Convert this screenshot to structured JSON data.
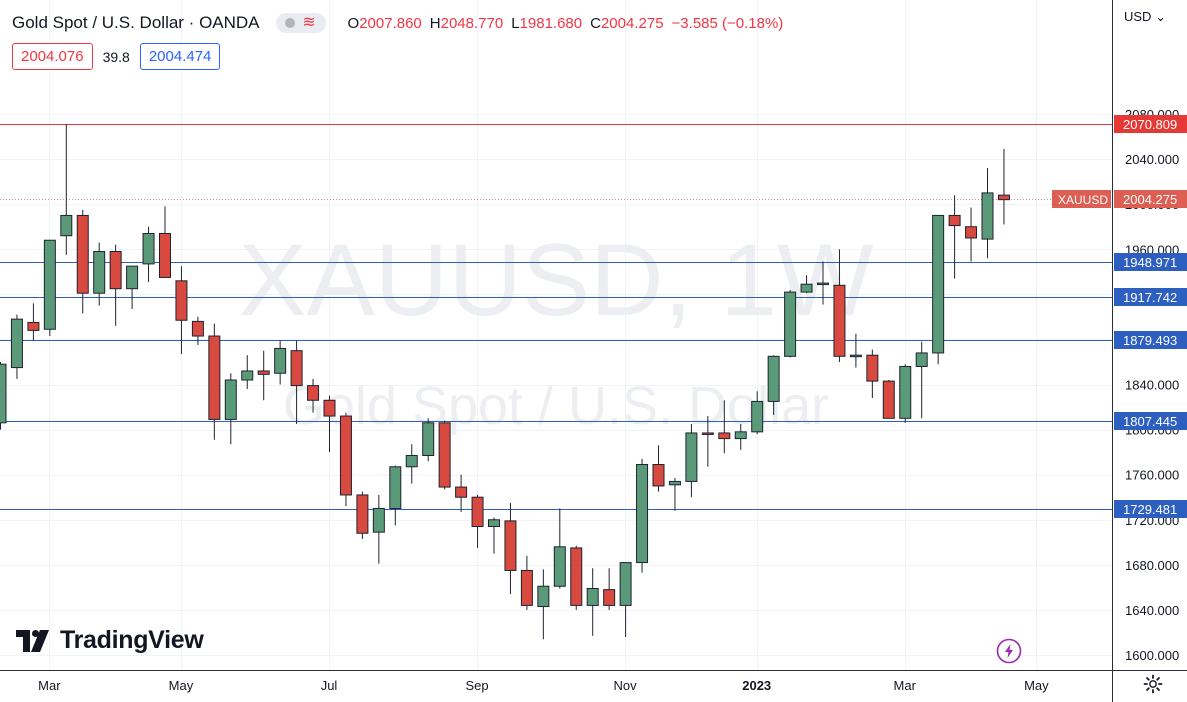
{
  "legend": {
    "title": "Gold Spot / U.S. Dollar · OANDA",
    "open_label": "O",
    "open": "2007.860",
    "high_label": "H",
    "high": "2048.770",
    "low_label": "L",
    "low": "1981.680",
    "close_label": "C",
    "close": "2004.275",
    "change": "−3.585 (−0.18%)",
    "sell_price": "2004.076",
    "spread": "39.8",
    "buy_price": "2004.474"
  },
  "currency_selector": "USD",
  "watermark": {
    "symbol": "XAUUSD, 1W",
    "name": "Gold Spot / U.S. Dollar"
  },
  "branding": {
    "logo_text": "TradingView"
  },
  "colors": {
    "up": "#5b9a79",
    "down": "#d8493f",
    "line": "#2c5fc0",
    "top_line": "#e53935",
    "label_blue": "#2c5fc0",
    "label_red": "#e53935",
    "price_label": "#dd5e52"
  },
  "chart_data": {
    "type": "candlestick",
    "symbol": "XAUUSD",
    "timeframe": "1W",
    "ylim": [
      1590,
      2110
    ],
    "y_ticks": [
      1600,
      1640,
      1680,
      1720,
      1760,
      1800,
      1840,
      1880,
      1920,
      1960,
      2000,
      2040,
      2080
    ],
    "y_tick_labels": [
      "1600.000",
      "1640.000",
      "1680.000",
      "1720.000",
      "1760.000",
      "1800.000",
      "1840.000",
      "1880.000",
      "1920.000",
      "1960.000",
      "2000.000",
      "2040.000",
      "2080.000"
    ],
    "x_labels": [
      {
        "label": "Mar",
        "index": 3
      },
      {
        "label": "May",
        "index": 11
      },
      {
        "label": "Jul",
        "index": 20
      },
      {
        "label": "Sep",
        "index": 29
      },
      {
        "label": "Nov",
        "index": 38
      },
      {
        "label": "2023",
        "index": 46
      },
      {
        "label": "Mar",
        "index": 55
      },
      {
        "label": "May",
        "index": 63
      }
    ],
    "candles": [
      {
        "o": 1806,
        "h": 1860,
        "l": 1800,
        "c": 1858
      },
      {
        "o": 1855,
        "h": 1902,
        "l": 1845,
        "c": 1898
      },
      {
        "o": 1895,
        "h": 1912,
        "l": 1879,
        "c": 1888
      },
      {
        "o": 1889,
        "h": 1967,
        "l": 1883,
        "c": 1968
      },
      {
        "o": 1972,
        "h": 2071,
        "l": 1955,
        "c": 1990
      },
      {
        "o": 1990,
        "h": 1995,
        "l": 1903,
        "c": 1921
      },
      {
        "o": 1921,
        "h": 1966,
        "l": 1910,
        "c": 1958
      },
      {
        "o": 1958,
        "h": 1964,
        "l": 1892,
        "c": 1925
      },
      {
        "o": 1925,
        "h": 1945,
        "l": 1907,
        "c": 1945
      },
      {
        "o": 1947,
        "h": 1980,
        "l": 1931,
        "c": 1974
      },
      {
        "o": 1974,
        "h": 1998,
        "l": 1935,
        "c": 1935
      },
      {
        "o": 1932,
        "h": 1945,
        "l": 1867,
        "c": 1897
      },
      {
        "o": 1896,
        "h": 1900,
        "l": 1875,
        "c": 1883
      },
      {
        "o": 1883,
        "h": 1894,
        "l": 1791,
        "c": 1809
      },
      {
        "o": 1809,
        "h": 1850,
        "l": 1787,
        "c": 1844
      },
      {
        "o": 1844,
        "h": 1866,
        "l": 1836,
        "c": 1852
      },
      {
        "o": 1852,
        "h": 1870,
        "l": 1826,
        "c": 1849
      },
      {
        "o": 1850,
        "h": 1879,
        "l": 1840,
        "c": 1872
      },
      {
        "o": 1870,
        "h": 1879,
        "l": 1805,
        "c": 1839
      },
      {
        "o": 1839,
        "h": 1845,
        "l": 1815,
        "c": 1826
      },
      {
        "o": 1826,
        "h": 1830,
        "l": 1780,
        "c": 1812
      },
      {
        "o": 1812,
        "h": 1815,
        "l": 1732,
        "c": 1742
      },
      {
        "o": 1742,
        "h": 1745,
        "l": 1703,
        "c": 1708
      },
      {
        "o": 1709,
        "h": 1742,
        "l": 1681,
        "c": 1730
      },
      {
        "o": 1730,
        "h": 1768,
        "l": 1715,
        "c": 1767
      },
      {
        "o": 1767,
        "h": 1787,
        "l": 1752,
        "c": 1777
      },
      {
        "o": 1777,
        "h": 1810,
        "l": 1772,
        "c": 1806
      },
      {
        "o": 1806,
        "h": 1808,
        "l": 1747,
        "c": 1749
      },
      {
        "o": 1749,
        "h": 1760,
        "l": 1727,
        "c": 1740
      },
      {
        "o": 1740,
        "h": 1742,
        "l": 1695,
        "c": 1714
      },
      {
        "o": 1714,
        "h": 1722,
        "l": 1690,
        "c": 1720
      },
      {
        "o": 1719,
        "h": 1735,
        "l": 1654,
        "c": 1675
      },
      {
        "o": 1675,
        "h": 1688,
        "l": 1640,
        "c": 1644
      },
      {
        "o": 1643,
        "h": 1676,
        "l": 1614,
        "c": 1661
      },
      {
        "o": 1661,
        "h": 1730,
        "l": 1659,
        "c": 1696
      },
      {
        "o": 1695,
        "h": 1697,
        "l": 1640,
        "c": 1644
      },
      {
        "o": 1644,
        "h": 1677,
        "l": 1617,
        "c": 1659
      },
      {
        "o": 1658,
        "h": 1677,
        "l": 1640,
        "c": 1644
      },
      {
        "o": 1644,
        "h": 1682,
        "l": 1616,
        "c": 1682
      },
      {
        "o": 1682,
        "h": 1774,
        "l": 1673,
        "c": 1769
      },
      {
        "o": 1769,
        "h": 1786,
        "l": 1745,
        "c": 1750
      },
      {
        "o": 1751,
        "h": 1757,
        "l": 1728,
        "c": 1754
      },
      {
        "o": 1754,
        "h": 1805,
        "l": 1740,
        "c": 1797
      },
      {
        "o": 1797,
        "h": 1812,
        "l": 1767,
        "c": 1796
      },
      {
        "o": 1797,
        "h": 1826,
        "l": 1779,
        "c": 1792
      },
      {
        "o": 1792,
        "h": 1805,
        "l": 1782,
        "c": 1798
      },
      {
        "o": 1798,
        "h": 1834,
        "l": 1796,
        "c": 1825
      },
      {
        "o": 1825,
        "h": 1866,
        "l": 1813,
        "c": 1865
      },
      {
        "o": 1865,
        "h": 1924,
        "l": 1864,
        "c": 1922
      },
      {
        "o": 1922,
        "h": 1937,
        "l": 1921,
        "c": 1929
      },
      {
        "o": 1929,
        "h": 1949,
        "l": 1911,
        "c": 1930
      },
      {
        "o": 1928,
        "h": 1960,
        "l": 1860,
        "c": 1865
      },
      {
        "o": 1865,
        "h": 1885,
        "l": 1855,
        "c": 1866
      },
      {
        "o": 1866,
        "h": 1871,
        "l": 1828,
        "c": 1843
      },
      {
        "o": 1843,
        "h": 1844,
        "l": 1810,
        "c": 1810
      },
      {
        "o": 1810,
        "h": 1858,
        "l": 1806,
        "c": 1856
      },
      {
        "o": 1856,
        "h": 1878,
        "l": 1810,
        "c": 1868
      },
      {
        "o": 1868,
        "h": 1990,
        "l": 1858,
        "c": 1990
      },
      {
        "o": 1990,
        "h": 2008,
        "l": 1934,
        "c": 1981
      },
      {
        "o": 1980,
        "h": 1997,
        "l": 1949,
        "c": 1970
      },
      {
        "o": 1969,
        "h": 2032,
        "l": 1952,
        "c": 2010
      },
      {
        "o": 2008,
        "h": 2049,
        "l": 1982,
        "c": 2004
      }
    ],
    "horizontal_lines": [
      {
        "value": 2070.809,
        "label": "2070.809",
        "kind": "red"
      },
      {
        "value": 1948.971,
        "label": "1948.971",
        "kind": "blue"
      },
      {
        "value": 1917.742,
        "label": "1917.742",
        "kind": "blue"
      },
      {
        "value": 1879.493,
        "label": "1879.493",
        "kind": "blue"
      },
      {
        "value": 1807.445,
        "label": "1807.445",
        "kind": "blue"
      },
      {
        "value": 1729.481,
        "label": "1729.481",
        "kind": "blue"
      }
    ],
    "last_price": {
      "value": 2004.275,
      "label": "2004.275",
      "symbol_label": "XAUUSD"
    }
  }
}
